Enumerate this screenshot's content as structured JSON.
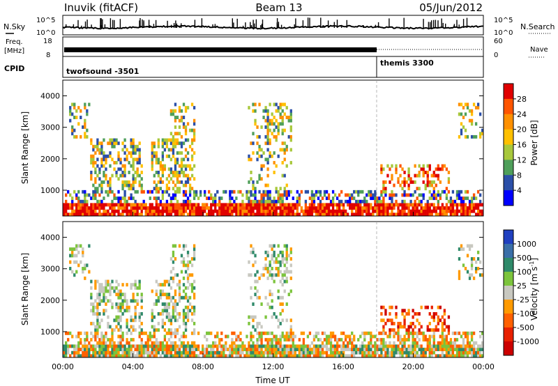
{
  "header": {
    "site_title": "Inuvik (fitACF)",
    "beam": "Beam 13",
    "date": "05/Jun/2012"
  },
  "status_panels": {
    "nsky_label": "N.Sky",
    "nsearch_label": "N.Search",
    "nsky_ticks": [
      "10^5",
      "10^0"
    ],
    "nsearch_ticks": [
      "10^5",
      "10^0"
    ],
    "freq_label": "Freq.",
    "freq_unit": "[MHz]",
    "freq_ticks": [
      "18",
      "8"
    ],
    "nave_label": "Nave",
    "nave_ticks": [
      "60",
      "0"
    ],
    "cpid_label": "CPID",
    "cpid_programs": [
      {
        "name": "twofsound -3501",
        "start_hour": 0,
        "end_hour": 18.0
      },
      {
        "name": "themis 3300",
        "start_hour": 18.0,
        "end_hour": 24
      }
    ]
  },
  "chart_data": [
    {
      "type": "heatmap",
      "panel": "power",
      "ylabel": "Slant Range [km]",
      "xlabel": "",
      "yticks": [
        1000,
        2000,
        3000,
        4000
      ],
      "ylim": [
        180,
        4500
      ],
      "xlim_hours": [
        0,
        24
      ],
      "colorbar": {
        "label": "Power [dB]",
        "tick_labels": [
          "28",
          "24",
          "20",
          "16",
          "12",
          "8",
          "4"
        ],
        "colors": [
          "#e00000",
          "#ff5500",
          "#ff9000",
          "#ffc000",
          "#a8c83c",
          "#4f9f5a",
          "#2b4fa8",
          "#0000ff"
        ]
      }
    },
    {
      "type": "heatmap",
      "panel": "velocity",
      "ylabel": "Slant Range [km]",
      "xlabel": "Time UT",
      "yticks": [
        1000,
        2000,
        3000,
        4000
      ],
      "ylim": [
        180,
        4500
      ],
      "xlim_hours": [
        0,
        24
      ],
      "xtick_labels": [
        "00:00",
        "04:00",
        "08:00",
        "12:00",
        "16:00",
        "20:00",
        "00:00"
      ],
      "colorbar": {
        "label": "Velocity [m s",
        "label_exponent": "-1",
        "label_close": "]",
        "tick_labels": [
          "1000",
          "500",
          "100",
          "25",
          "-25",
          "-100",
          "-500",
          "-1000"
        ],
        "colors": [
          "#2040c0",
          "#3a6fa8",
          "#2f8a6a",
          "#7cc43c",
          "#c8c8c0",
          "#ff9a00",
          "#ff6000",
          "#e82000",
          "#cc0000"
        ]
      }
    }
  ]
}
